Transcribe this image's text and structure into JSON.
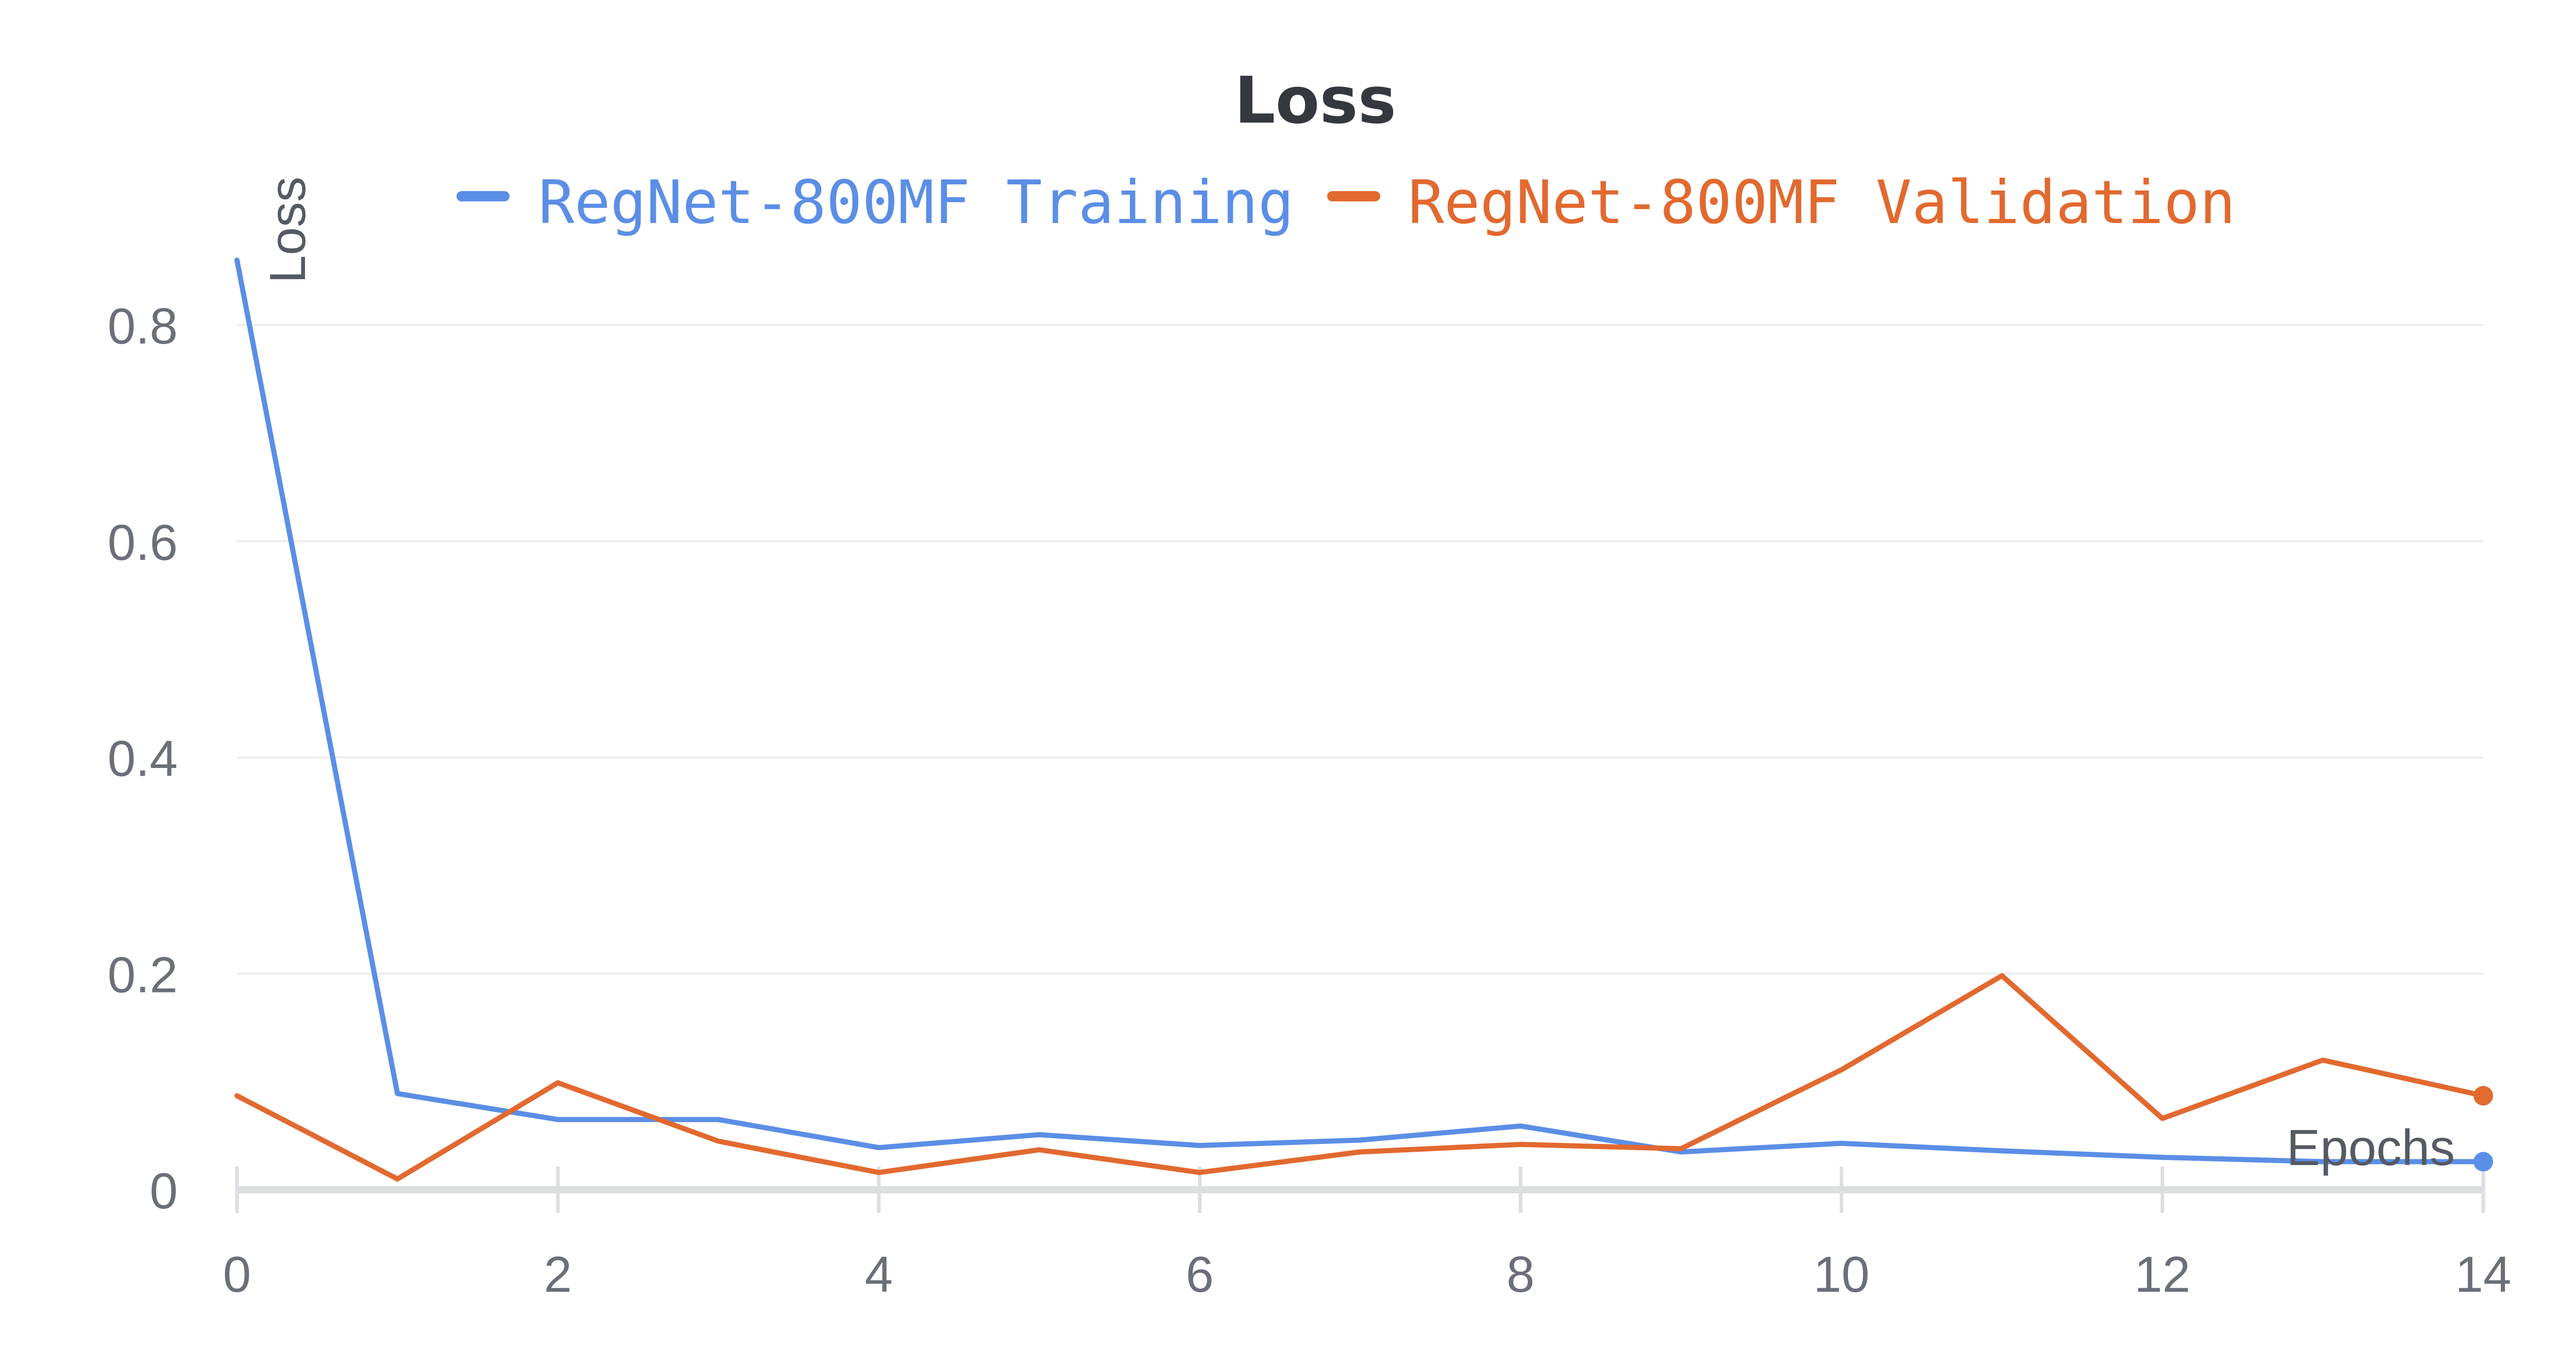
{
  "chart_data": {
    "type": "line",
    "title": "Loss",
    "xlabel": "Epochs",
    "ylabel": "Loss",
    "x": [
      0,
      1,
      2,
      3,
      4,
      5,
      6,
      7,
      8,
      9,
      10,
      11,
      12,
      13,
      14
    ],
    "series": [
      {
        "name": "RegNet-800MF Training",
        "color": "#5b8ee6",
        "values": [
          0.86,
          0.089,
          0.065,
          0.065,
          0.039,
          0.051,
          0.041,
          0.046,
          0.059,
          0.035,
          0.043,
          0.036,
          0.03,
          0.026,
          0.026
        ]
      },
      {
        "name": "RegNet-800MF Validation",
        "color": "#e2692f",
        "values": [
          0.087,
          0.01,
          0.099,
          0.045,
          0.016,
          0.037,
          0.016,
          0.035,
          0.042,
          0.038,
          0.111,
          0.198,
          0.066,
          0.12,
          0.087
        ]
      }
    ],
    "xlim": [
      0,
      14
    ],
    "ylim": [
      0,
      0.86
    ],
    "xticks": [
      "0",
      "2",
      "4",
      "6",
      "8",
      "10",
      "12",
      "14"
    ],
    "yticks": [
      "0",
      "0.2",
      "0.4",
      "0.6",
      "0.8"
    ],
    "grid": "horizontal",
    "legend_position": "top-center",
    "end_markers": true
  }
}
